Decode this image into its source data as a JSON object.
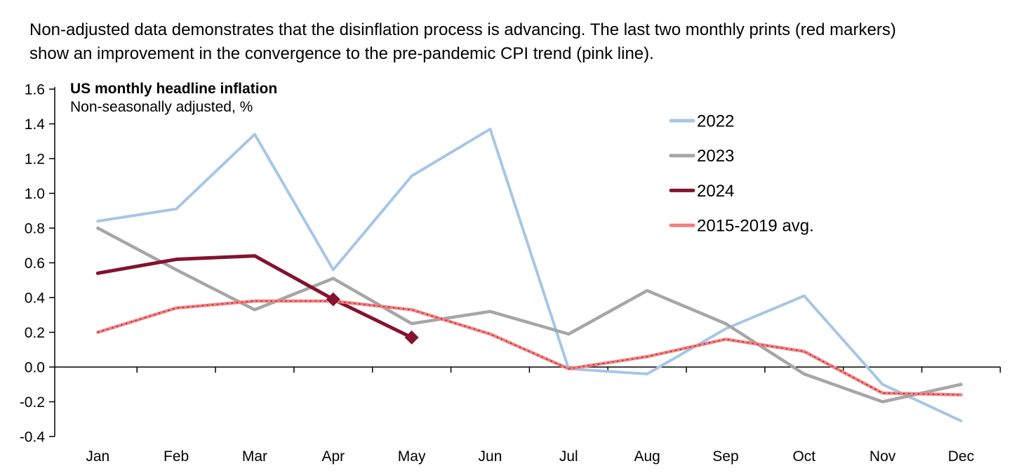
{
  "header": {
    "line1": "Non-adjusted data demonstrates that the disinflation process is advancing. The last two monthly prints (red markers)",
    "line2": "show an improvement in the convergence to the pre-pandemic CPI trend (pink line)."
  },
  "chart_data": {
    "type": "line",
    "title": "US monthly headline inflation",
    "subtitle": "Non-seasonally adjusted, %",
    "categories": [
      "Jan",
      "Feb",
      "Mar",
      "Apr",
      "May",
      "Jun",
      "Jul",
      "Aug",
      "Sep",
      "Oct",
      "Nov",
      "Dec"
    ],
    "ylim": [
      -0.4,
      1.6
    ],
    "ytick_step": 0.2,
    "grid": false,
    "legend_position": "inside-upper-right",
    "series": [
      {
        "name": "2022",
        "color": "#A7C6E7",
        "line_width": 4,
        "values": [
          0.84,
          0.91,
          1.34,
          0.56,
          1.1,
          1.37,
          -0.01,
          -0.04,
          0.22,
          0.41,
          -0.1,
          -0.31
        ]
      },
      {
        "name": "2023",
        "color": "#A6A6A6",
        "line_width": 4.5,
        "values": [
          0.8,
          0.56,
          0.33,
          0.51,
          0.25,
          0.32,
          0.19,
          0.44,
          0.25,
          -0.04,
          -0.2,
          -0.1
        ]
      },
      {
        "name": "2024",
        "color": "#83132F",
        "line_width": 5,
        "values": [
          0.54,
          0.62,
          0.64,
          0.39,
          0.17
        ],
        "marker": "diamond",
        "marker_point_indexes": [
          3,
          4
        ],
        "marker_size": 10
      },
      {
        "name": "2015-2019 avg.",
        "color": "#F47E7E",
        "line_width": 4.5,
        "values": [
          0.2,
          0.34,
          0.38,
          0.38,
          0.33,
          0.19,
          -0.01,
          0.06,
          0.16,
          0.09,
          -0.15,
          -0.16
        ],
        "overlay_dotted_color": "#8C1A2B"
      }
    ],
    "axis_color": "#000000"
  }
}
